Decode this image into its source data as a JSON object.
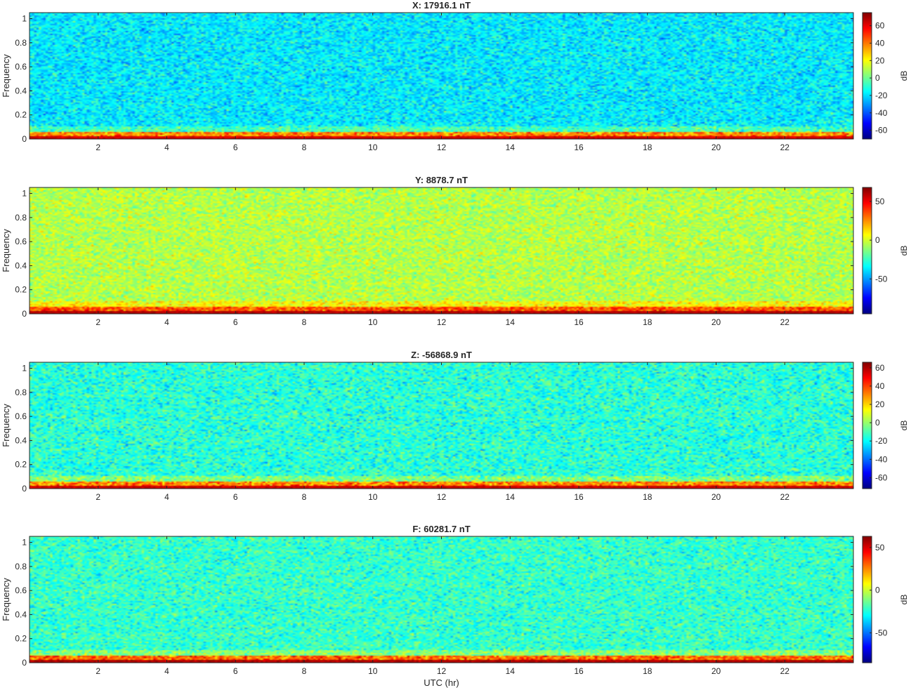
{
  "chart_data": [
    {
      "type": "heatmap",
      "title": "X: 17916.1 nT",
      "ylabel": "Frequency",
      "xlabel": "",
      "colorbar_label": "dB",
      "xlim": [
        0,
        24
      ],
      "ylim": [
        0,
        1.05
      ],
      "x_ticks": [
        2,
        4,
        6,
        8,
        10,
        12,
        14,
        16,
        18,
        20,
        22
      ],
      "y_ticks": [
        0,
        0.2,
        0.4,
        0.6,
        0.8,
        1
      ],
      "clim": [
        -70,
        75
      ],
      "colorbar_ticks": [
        60,
        40,
        20,
        0,
        -20,
        -40,
        -60
      ],
      "colormap": "jet",
      "background_level_dB": -18,
      "low_frequency_band_dB": 65
    },
    {
      "type": "heatmap",
      "title": "Y: 8878.7 nT",
      "ylabel": "Frequency",
      "xlabel": "",
      "colorbar_label": "dB",
      "xlim": [
        0,
        24
      ],
      "ylim": [
        0,
        1.05
      ],
      "x_ticks": [
        2,
        4,
        6,
        8,
        10,
        12,
        14,
        16,
        18,
        20,
        22
      ],
      "y_ticks": [
        0,
        0.2,
        0.4,
        0.6,
        0.8,
        1
      ],
      "clim": [
        -95,
        68
      ],
      "colorbar_ticks": [
        50,
        0,
        -50
      ],
      "colormap": "jet",
      "background_level_dB": -5,
      "low_frequency_band_dB": 62
    },
    {
      "type": "heatmap",
      "title": "Z: -56868.9 nT",
      "ylabel": "Frequency",
      "xlabel": "",
      "colorbar_label": "dB",
      "xlim": [
        0,
        24
      ],
      "ylim": [
        0,
        1.05
      ],
      "x_ticks": [
        2,
        4,
        6,
        8,
        10,
        12,
        14,
        16,
        18,
        20,
        22
      ],
      "y_ticks": [
        0,
        0.2,
        0.4,
        0.6,
        0.8,
        1
      ],
      "clim": [
        -72,
        66
      ],
      "colorbar_ticks": [
        60,
        40,
        20,
        0,
        -20,
        -40,
        -60
      ],
      "colormap": "jet",
      "background_level_dB": -15,
      "low_frequency_band_dB": 58
    },
    {
      "type": "heatmap",
      "title": "F: 60281.7 nT",
      "ylabel": "Frequency",
      "xlabel": "UTC (hr)",
      "colorbar_label": "dB",
      "xlim": [
        0,
        24
      ],
      "ylim": [
        0,
        1.05
      ],
      "x_ticks": [
        2,
        4,
        6,
        8,
        10,
        12,
        14,
        16,
        18,
        20,
        22
      ],
      "y_ticks": [
        0,
        0.2,
        0.4,
        0.6,
        0.8,
        1
      ],
      "clim": [
        -85,
        63
      ],
      "colorbar_ticks": [
        50,
        0,
        -50
      ],
      "colormap": "jet",
      "background_level_dB": -22,
      "low_frequency_band_dB": 58
    }
  ]
}
